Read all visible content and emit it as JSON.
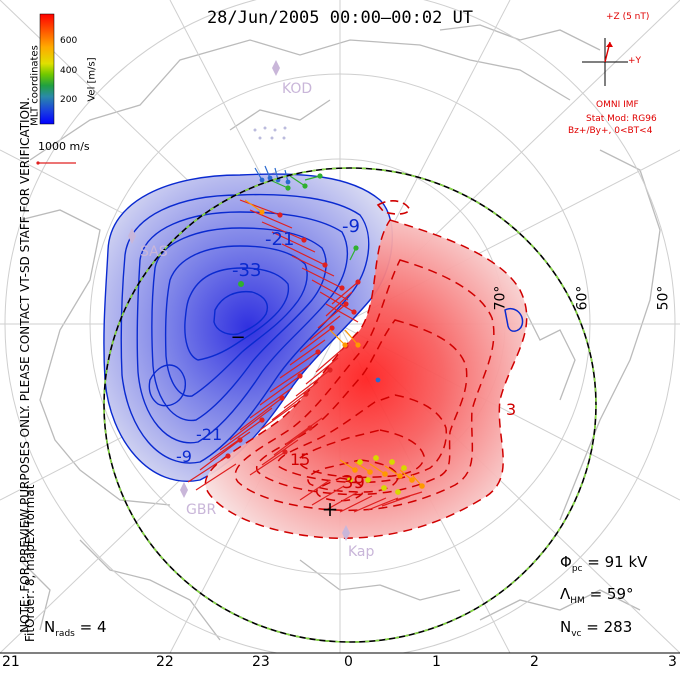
{
  "title": "28/Jun/2005 00:00–00:02 UT",
  "side_note": "NOTE: FOR PREVIEW PURPOSES ONLY. PLEASE CONTACT VT-SD STAFF FOR VERIFICATION.",
  "fit_info": "FitOrder: 8, mapEX format",
  "coordinates": "MLT coordinates",
  "colorbar": {
    "label": "Vel [m/s]",
    "ticks": [
      "600",
      "400",
      "200"
    ],
    "colors": [
      "#ff0000",
      "#ff6600",
      "#ffaa00",
      "#d8d800",
      "#80d000",
      "#20b030",
      "#3aa0a0",
      "#2a60d0",
      "#0000ff"
    ]
  },
  "ref_vector": "1000 m/s",
  "imf": {
    "z_label": "+Z (5 nT)",
    "y_label": "+Y",
    "source": "OMNI IMF",
    "model": "Stat Mod: RG96",
    "condition": "Bz+/By+, 0<BT<4"
  },
  "stations": [
    "KOD",
    "SAS",
    "GBR",
    "Kap"
  ],
  "contour_labels": {
    "negative": [
      "-9",
      "-21",
      "-33",
      "-9",
      "-21"
    ],
    "positive": [
      "39",
      "15",
      "3"
    ],
    "min_mark": "−",
    "max_mark": "+"
  },
  "lat_labels": [
    "70°",
    "60°",
    "50°"
  ],
  "mlt_labels": [
    "21",
    "22",
    "23",
    "0",
    "1",
    "2",
    "3"
  ],
  "stats": {
    "phi_pc_sym": "Φ",
    "phi_pc_sub": "pc",
    "phi_pc": "= 91 kV",
    "lambda_hm_sym": "Λ",
    "lambda_hm_sub": "HM",
    "lambda_hm": "= 59°",
    "n_vc_sym": "N",
    "n_vc_sub": "vc",
    "n_vc": "= 283",
    "n_rads_sym": "N",
    "n_rads_sub": "rads",
    "n_rads": "= 4"
  },
  "colors": {
    "negative_contour": "#0a2ad0",
    "positive_contour": "#d00000",
    "boundary_outer": "#000000",
    "boundary_inner": "#88dd44",
    "land": "#bbbbbb",
    "imf_vector": "#e00000"
  }
}
